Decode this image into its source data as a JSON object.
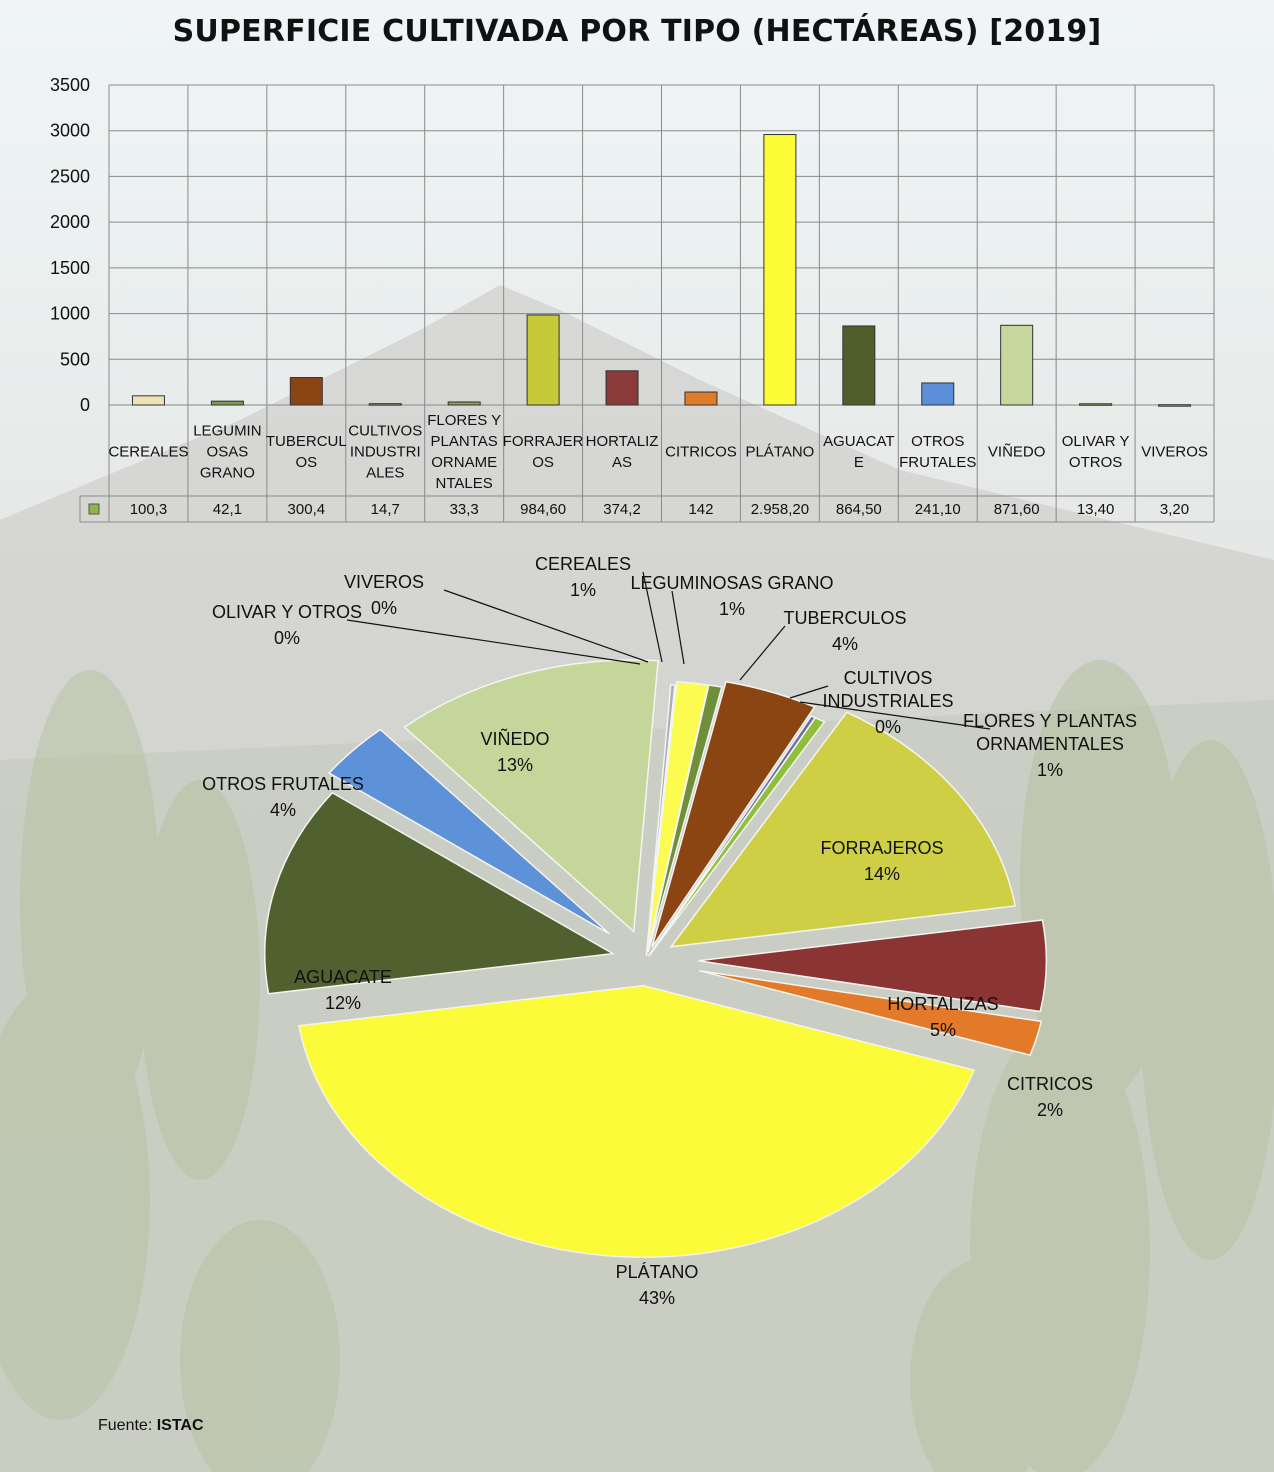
{
  "title": "SUPERFICIE CULTIVADA POR TIPO (HECTÁREAS) [2019]",
  "source_label": "Fuente:",
  "source_name": "ISTAC",
  "chart_data": [
    {
      "type": "bar",
      "ylim": [
        0,
        3500
      ],
      "yticks": [
        "0",
        "500",
        "1000",
        "1500",
        "2000",
        "2500",
        "3000",
        "3500"
      ],
      "grid": true,
      "categories": [
        [
          "CEREALES"
        ],
        [
          "LEGUMIN",
          "OSAS",
          "GRANO"
        ],
        [
          "TUBERCUL",
          "OS"
        ],
        [
          "CULTIVOS",
          "INDUSTRI",
          "ALES"
        ],
        [
          "FLORES Y",
          "PLANTAS",
          "ORNAME",
          "NTALES"
        ],
        [
          "FORRAJER",
          "OS"
        ],
        [
          "HORTALIZ",
          "AS"
        ],
        [
          "CITRICOS"
        ],
        [
          "PLÁTANO"
        ],
        [
          "AGUACAT",
          "E"
        ],
        [
          "OTROS",
          "FRUTALES"
        ],
        [
          "VIÑEDO"
        ],
        [
          "OLIVAR Y",
          "OTROS"
        ],
        [
          "VIVEROS"
        ]
      ],
      "values": [
        100.3,
        42.1,
        300.4,
        14.7,
        33.3,
        984.6,
        374.2,
        142,
        2958.2,
        864.5,
        241.1,
        871.6,
        13.4,
        3.2
      ],
      "value_labels": [
        "100,3",
        "42,1",
        "300,4",
        "14,7",
        "33,3",
        "984,60",
        "374,2",
        "142",
        "2.958,20",
        "864,50",
        "241,10",
        "871,60",
        "13,40",
        "3,20"
      ],
      "colors": [
        "#eee3b8",
        "#7f9a55",
        "#8b4513",
        "#9aa470",
        "#8f9c5c",
        "#c6c93a",
        "#8b3a3a",
        "#e07b2a",
        "#fbfb36",
        "#4f5e2a",
        "#5b8fd8",
        "#c6d89e",
        "#9aab64",
        "#9ea7b0"
      ],
      "legend_marker_color": "#8db54a"
    },
    {
      "type": "pie",
      "labels": [
        "CEREALES",
        "LEGUMINOSAS GRANO",
        "TUBERCULOS",
        "CULTIVOS INDUSTRIALES",
        "FLORES Y PLANTAS ORNAMENTALES",
        "FORRAJEROS",
        "HORTALIZAS",
        "CITRICOS",
        "PLÁTANO",
        "AGUACATE",
        "OTROS FRUTALES",
        "VIÑEDO",
        "OLIVAR Y OTROS",
        "VIVEROS"
      ],
      "values": [
        100.3,
        42.1,
        300.4,
        14.7,
        33.3,
        984.6,
        374.2,
        142,
        2958.2,
        864.5,
        241.1,
        871.6,
        13.4,
        3.2
      ],
      "percent_labels": [
        "1%",
        "1%",
        "4%",
        "0%",
        "1%",
        "14%",
        "5%",
        "2%",
        "43%",
        "12%",
        "4%",
        "13%",
        "0%",
        "0%"
      ],
      "colors": [
        "#fbfb50",
        "#6f8f3a",
        "#8b4513",
        "#6a6fa0",
        "#8fbf3a",
        "#cfcf45",
        "#8b3434",
        "#e27a2a",
        "#fbfb3a",
        "#50602e",
        "#5e92d8",
        "#c4d69a",
        "#a8b0b8",
        "#b8bec6"
      ]
    }
  ]
}
